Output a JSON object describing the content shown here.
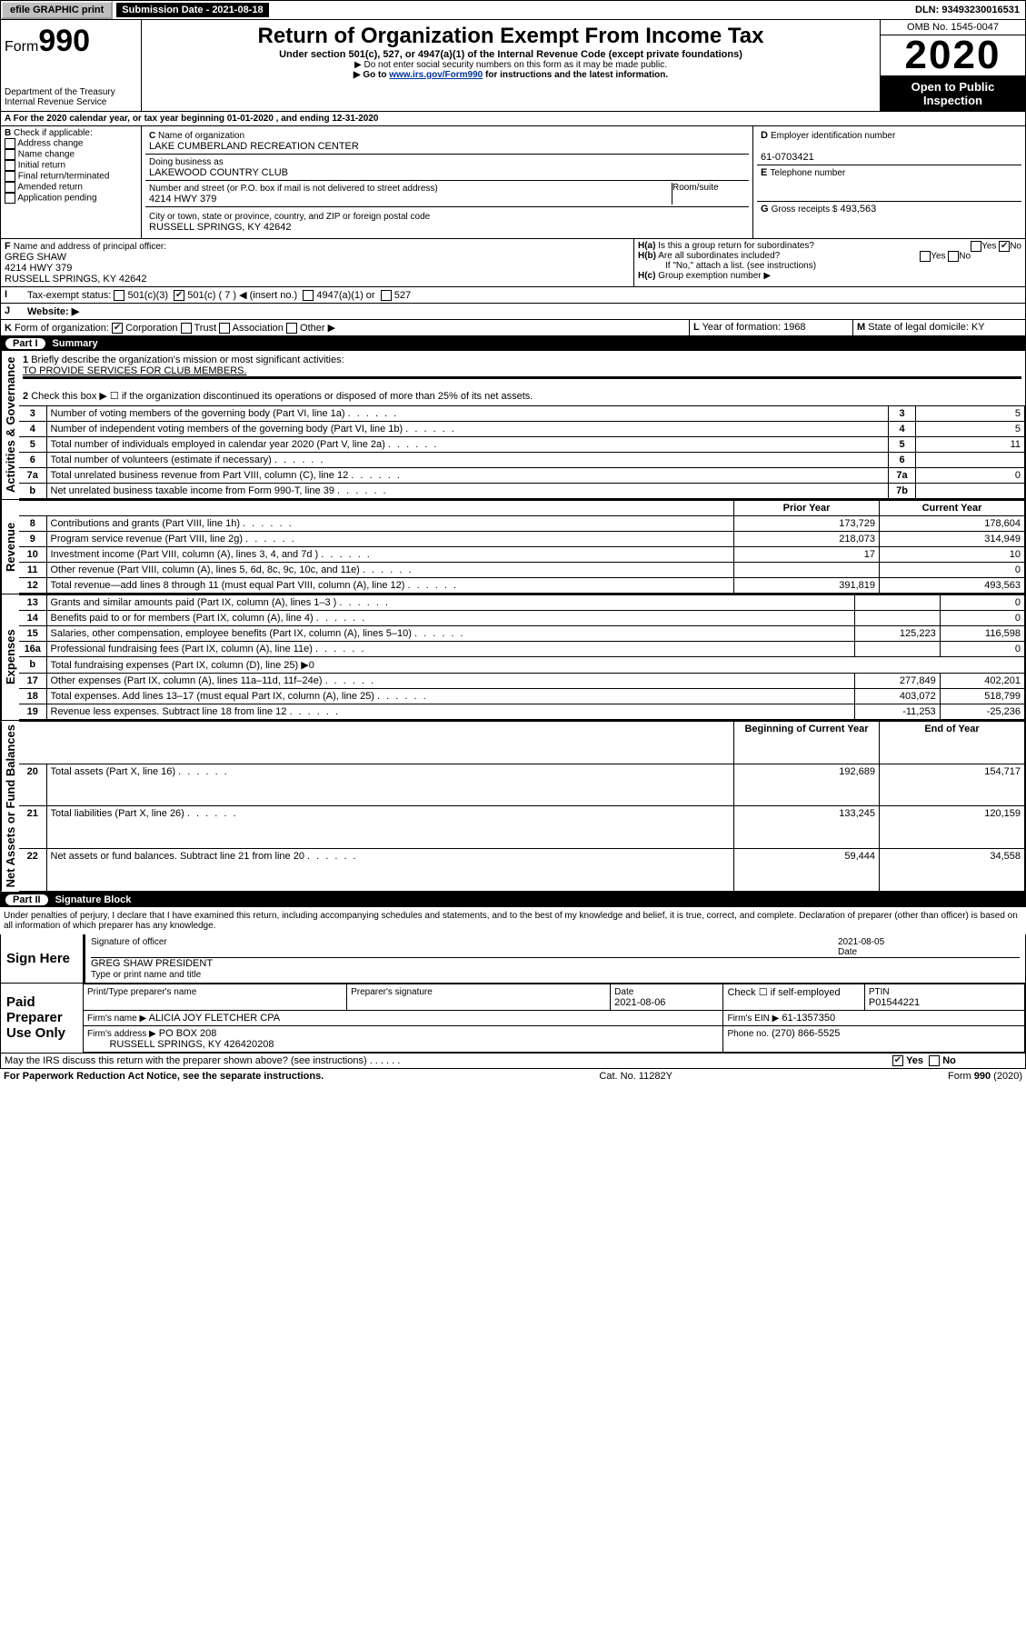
{
  "topbar": {
    "efile": "efile GRAPHIC print",
    "sub_label": "Submission Date - 2021-08-18",
    "dln": "DLN: 93493230016531"
  },
  "header": {
    "form_prefix": "Form",
    "form_no": "990",
    "dept": "Department of the Treasury Internal Revenue Service",
    "title": "Return of Organization Exempt From Income Tax",
    "subtitle": "Under section 501(c), 527, or 4947(a)(1) of the Internal Revenue Code (except private foundations)",
    "note1": "Do not enter social security numbers on this form as it may be made public.",
    "note2_pre": "Go to ",
    "note2_link": "www.irs.gov/Form990",
    "note2_post": " for instructions and the latest information.",
    "omb": "OMB No. 1545-0047",
    "year": "2020",
    "open": "Open to Public Inspection"
  },
  "A": {
    "text": "For the 2020 calendar year, or tax year beginning 01-01-2020 , and ending 12-31-2020"
  },
  "B": {
    "label": "Check if applicable:",
    "opts": [
      "Address change",
      "Name change",
      "Initial return",
      "Final return/terminated",
      "Amended return",
      "Application pending"
    ]
  },
  "C": {
    "name_label": "Name of organization",
    "name": "LAKE CUMBERLAND RECREATION CENTER",
    "dba_label": "Doing business as",
    "dba": "LAKEWOOD COUNTRY CLUB",
    "addr_label": "Number and street (or P.O. box if mail is not delivered to street address)",
    "room_label": "Room/suite",
    "addr": "4214 HWY 379",
    "city_label": "City or town, state or province, country, and ZIP or foreign postal code",
    "city": "RUSSELL SPRINGS, KY  42642"
  },
  "D": {
    "label": "Employer identification number",
    "val": "61-0703421"
  },
  "E": {
    "label": "Telephone number"
  },
  "G": {
    "label": "Gross receipts $",
    "val": "493,563"
  },
  "F": {
    "label": "Name and address of principal officer:",
    "name": "GREG SHAW",
    "addr1": "4214 HWY 379",
    "addr2": "RUSSELL SPRINGS, KY  42642"
  },
  "H": {
    "a": "Is this a group return for subordinates?",
    "b": "Are all subordinates included?",
    "b2": "If \"No,\" attach a list. (see instructions)",
    "c": "Group exemption number ▶",
    "yes": "Yes",
    "no": "No"
  },
  "I": {
    "label": "Tax-exempt status:",
    "c3": "501(c)(3)",
    "c": "501(c) ( 7 ) ◀ (insert no.)",
    "a1": "4947(a)(1) or",
    "527": "527"
  },
  "J": {
    "label": "Website: ▶"
  },
  "K": {
    "label": "Form of organization:",
    "corp": "Corporation",
    "trust": "Trust",
    "assoc": "Association",
    "other": "Other ▶"
  },
  "L": {
    "label": "Year of formation:",
    "val": "1968"
  },
  "M": {
    "label": "State of legal domicile:",
    "val": "KY"
  },
  "partI": {
    "title": "Summary",
    "q1": "Briefly describe the organization's mission or most significant activities:",
    "mission": "TO PROVIDE SERVICES FOR CLUB MEMBERS.",
    "q2": "Check this box ▶ ☐  if the organization discontinued its operations or disposed of more than 25% of its net assets.",
    "rows_gov": [
      {
        "n": "3",
        "t": "Number of voting members of the governing body (Part VI, line 1a)",
        "ln": "3",
        "v": "5"
      },
      {
        "n": "4",
        "t": "Number of independent voting members of the governing body (Part VI, line 1b)",
        "ln": "4",
        "v": "5"
      },
      {
        "n": "5",
        "t": "Total number of individuals employed in calendar year 2020 (Part V, line 2a)",
        "ln": "5",
        "v": "11"
      },
      {
        "n": "6",
        "t": "Total number of volunteers (estimate if necessary)",
        "ln": "6",
        "v": ""
      },
      {
        "n": "7a",
        "t": "Total unrelated business revenue from Part VIII, column (C), line 12",
        "ln": "7a",
        "v": "0"
      },
      {
        "n": "b",
        "t": "Net unrelated business taxable income from Form 990-T, line 39",
        "ln": "7b",
        "v": ""
      }
    ],
    "col_prior": "Prior Year",
    "col_current": "Current Year",
    "rows_rev": [
      {
        "n": "8",
        "t": "Contributions and grants (Part VIII, line 1h)",
        "p": "173,729",
        "c": "178,604"
      },
      {
        "n": "9",
        "t": "Program service revenue (Part VIII, line 2g)",
        "p": "218,073",
        "c": "314,949"
      },
      {
        "n": "10",
        "t": "Investment income (Part VIII, column (A), lines 3, 4, and 7d )",
        "p": "17",
        "c": "10"
      },
      {
        "n": "11",
        "t": "Other revenue (Part VIII, column (A), lines 5, 6d, 8c, 9c, 10c, and 11e)",
        "p": "",
        "c": "0"
      },
      {
        "n": "12",
        "t": "Total revenue—add lines 8 through 11 (must equal Part VIII, column (A), line 12)",
        "p": "391,819",
        "c": "493,563"
      }
    ],
    "rows_exp": [
      {
        "n": "13",
        "t": "Grants and similar amounts paid (Part IX, column (A), lines 1–3 )",
        "p": "",
        "c": "0"
      },
      {
        "n": "14",
        "t": "Benefits paid to or for members (Part IX, column (A), line 4)",
        "p": "",
        "c": "0"
      },
      {
        "n": "15",
        "t": "Salaries, other compensation, employee benefits (Part IX, column (A), lines 5–10)",
        "p": "125,223",
        "c": "116,598"
      },
      {
        "n": "16a",
        "t": "Professional fundraising fees (Part IX, column (A), line 11e)",
        "p": "",
        "c": "0"
      },
      {
        "n": "b",
        "t": "Total fundraising expenses (Part IX, column (D), line 25) ▶0",
        "p": null,
        "c": null
      },
      {
        "n": "17",
        "t": "Other expenses (Part IX, column (A), lines 11a–11d, 11f–24e)",
        "p": "277,849",
        "c": "402,201"
      },
      {
        "n": "18",
        "t": "Total expenses. Add lines 13–17 (must equal Part IX, column (A), line 25)",
        "p": "403,072",
        "c": "518,799"
      },
      {
        "n": "19",
        "t": "Revenue less expenses. Subtract line 18 from line 12",
        "p": "-11,253",
        "c": "-25,236"
      }
    ],
    "col_beg": "Beginning of Current Year",
    "col_end": "End of Year",
    "rows_net": [
      {
        "n": "20",
        "t": "Total assets (Part X, line 16)",
        "p": "192,689",
        "c": "154,717"
      },
      {
        "n": "21",
        "t": "Total liabilities (Part X, line 26)",
        "p": "133,245",
        "c": "120,159"
      },
      {
        "n": "22",
        "t": "Net assets or fund balances. Subtract line 21 from line 20",
        "p": "59,444",
        "c": "34,558"
      }
    ],
    "sec_gov": "Activities & Governance",
    "sec_rev": "Revenue",
    "sec_exp": "Expenses",
    "sec_net": "Net Assets or Fund Balances"
  },
  "partII": {
    "title": "Signature Block",
    "perjury": "Under penalties of perjury, I declare that I have examined this return, including accompanying schedules and statements, and to the best of my knowledge and belief, it is true, correct, and complete. Declaration of preparer (other than officer) is based on all information of which preparer has any knowledge.",
    "sign_here": "Sign Here",
    "sig_officer": "Signature of officer",
    "sig_date": "2021-08-05",
    "date_lbl": "Date",
    "officer_name": "GREG SHAW  PRESIDENT",
    "type_name": "Type or print name and title",
    "paid": "Paid Preparer Use Only",
    "prep_name_lbl": "Print/Type preparer's name",
    "prep_sig_lbl": "Preparer's signature",
    "prep_date_lbl": "Date",
    "prep_date": "2021-08-06",
    "check_self": "Check ☐ if self-employed",
    "ptin_lbl": "PTIN",
    "ptin": "P01544221",
    "firm_name_lbl": "Firm's name    ▶",
    "firm_name": "ALICIA JOY FLETCHER CPA",
    "firm_ein_lbl": "Firm's EIN ▶",
    "firm_ein": "61-1357350",
    "firm_addr_lbl": "Firm's address ▶",
    "firm_addr": "PO BOX 208",
    "firm_addr2": "RUSSELL SPRINGS, KY  426420208",
    "phone_lbl": "Phone no.",
    "phone": "(270) 866-5525",
    "discuss": "May the IRS discuss this return with the preparer shown above? (see instructions)"
  },
  "footer": {
    "pra": "For Paperwork Reduction Act Notice, see the separate instructions.",
    "cat": "Cat. No. 11282Y",
    "form": "Form 990 (2020)"
  }
}
